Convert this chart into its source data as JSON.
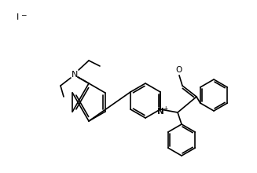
{
  "background_color": "#ffffff",
  "line_color": "#000000",
  "line_width": 1.2,
  "font_size": 7.5,
  "iodide_text": "I",
  "oxygen_text": "O",
  "nitrogen_text": "N",
  "nplus_text": "N",
  "charge_plus": "+",
  "charge_minus": "−"
}
